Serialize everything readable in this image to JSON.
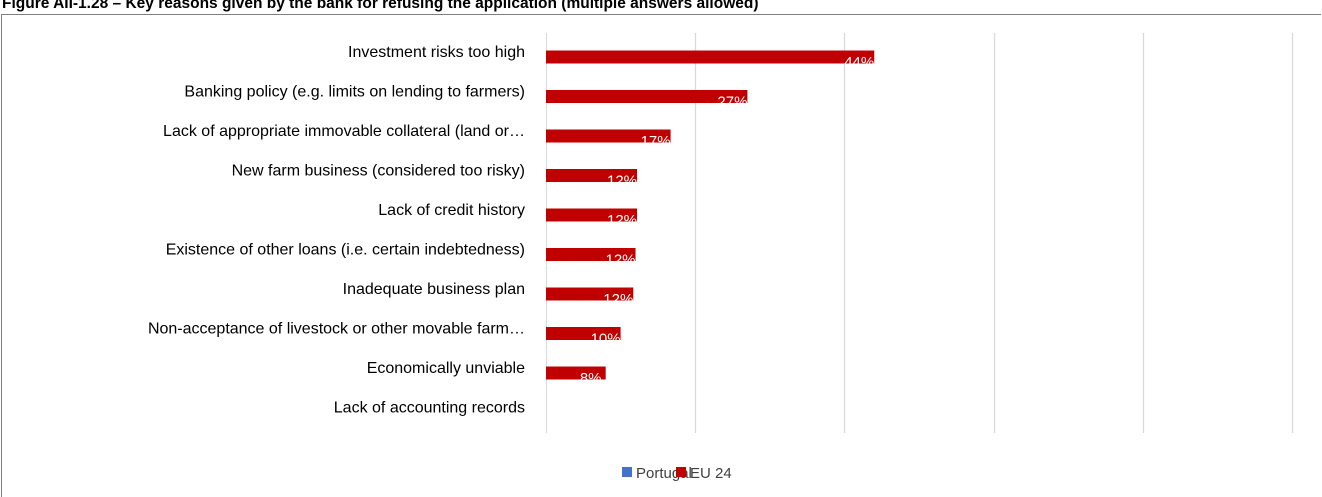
{
  "title": "Figure AII-1.28 – Key reasons given by the bank for refusing the application (multiple answers allowed)",
  "chart_data": {
    "type": "bar",
    "orientation": "horizontal",
    "categories": [
      "Investment risks too high",
      "Banking policy (e.g. limits on lending to farmers)",
      "Lack of appropriate immovable collateral (land or…",
      "New farm business (considered too risky)",
      "Lack of credit history",
      "Existence of other loans (i.e. certain indebtedness)",
      "Inadequate business plan",
      "Non-acceptance of livestock or other movable farm…",
      "Economically unviable",
      "Lack of accounting records"
    ],
    "series": [
      {
        "name": "Portugal",
        "color": "#4472c4",
        "values": [
          0,
          0,
          0,
          0,
          0,
          0,
          0,
          0,
          0,
          0
        ]
      },
      {
        "name": "EU 24",
        "color": "#c00000",
        "values": [
          0.44,
          0.27,
          0.167,
          0.122,
          0.122,
          0.12,
          0.117,
          0.1,
          0.08,
          0.0
        ],
        "data_labels": [
          "44%",
          "27%",
          "17%",
          "12%",
          "12%",
          "12%",
          "12%",
          "10%",
          "8%",
          ""
        ]
      }
    ],
    "xlim": [
      0,
      1
    ],
    "gridlines": true,
    "legend_position": "bottom",
    "xlabel": "",
    "ylabel": ""
  }
}
